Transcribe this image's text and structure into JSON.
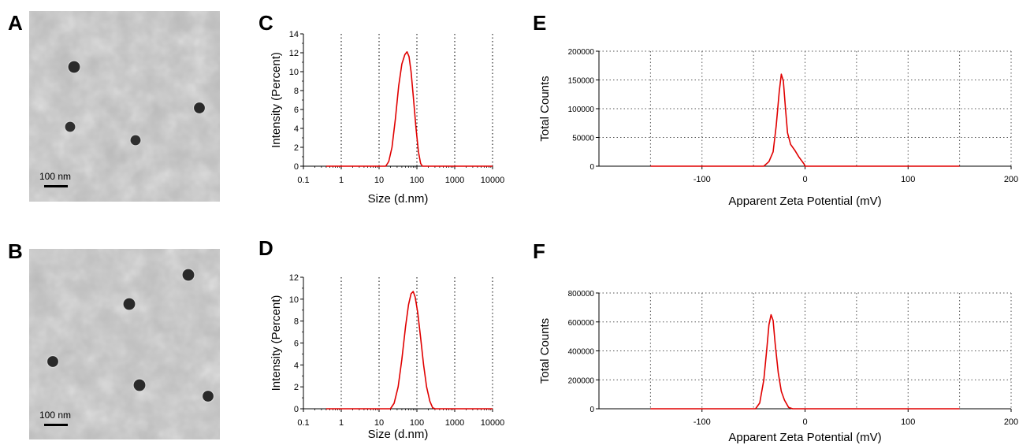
{
  "panels": {
    "A": "A",
    "B": "B",
    "C": "C",
    "D": "D",
    "E": "E",
    "F": "F"
  },
  "tem_images": [
    {
      "panel": "A",
      "scale_bar_label": "100 nm",
      "particles": 4
    },
    {
      "panel": "B",
      "scale_bar_label": "100 nm",
      "particles": 5
    }
  ],
  "colors": {
    "curve": "#e00000",
    "axis": "#000000",
    "grid": "#555555"
  },
  "chart_data": [
    {
      "panel": "C",
      "type": "line",
      "xscale": "log",
      "xlabel": "Size (d.nm)",
      "ylabel": "Intensity (Percent)",
      "xlim": [
        0.1,
        10000
      ],
      "ylim": [
        0,
        14
      ],
      "xticks": [
        "0.1",
        "1",
        "10",
        "100",
        "1000",
        "10000"
      ],
      "yticks": [
        "0",
        "2",
        "4",
        "6",
        "8",
        "10",
        "12",
        "14"
      ],
      "grid": "vertical dotted",
      "series": [
        {
          "x": [
            0.4,
            15,
            18,
            22,
            27,
            33,
            40,
            48,
            55,
            62,
            70,
            80,
            95,
            110,
            125,
            140,
            10000
          ],
          "y": [
            0,
            0,
            0.5,
            2,
            5,
            8.5,
            10.8,
            11.8,
            12.1,
            11.6,
            10,
            7.5,
            4,
            1.5,
            0.3,
            0,
            0
          ]
        }
      ]
    },
    {
      "panel": "D",
      "type": "line",
      "xscale": "log",
      "xlabel": "Size (d.nm)",
      "ylabel": "Intensity (Percent)",
      "xlim": [
        0.1,
        10000
      ],
      "ylim": [
        0,
        12
      ],
      "xticks": [
        "0.1",
        "1",
        "10",
        "100",
        "1000",
        "10000"
      ],
      "yticks": [
        "0",
        "2",
        "4",
        "6",
        "8",
        "10",
        "12"
      ],
      "grid": "vertical dotted",
      "series": [
        {
          "x": [
            0.4,
            20,
            25,
            32,
            40,
            50,
            60,
            70,
            80,
            90,
            105,
            125,
            150,
            180,
            220,
            260,
            300,
            10000
          ],
          "y": [
            0,
            0,
            0.5,
            2,
            4.5,
            7.5,
            9.5,
            10.5,
            10.7,
            10.2,
            8.8,
            6.5,
            4,
            2,
            0.7,
            0.1,
            0,
            0
          ]
        }
      ]
    },
    {
      "panel": "E",
      "type": "line",
      "xlabel": "Apparent Zeta Potential (mV)",
      "ylabel": "Total Counts",
      "xlim": [
        -200,
        200
      ],
      "ylim": [
        0,
        200000
      ],
      "xticks": [
        "-100",
        "0",
        "100",
        "200"
      ],
      "yticks": [
        "0",
        "50000",
        "100000",
        "150000",
        "200000"
      ],
      "grid": "dotted",
      "series": [
        {
          "x": [
            -150,
            -40,
            -35,
            -31,
            -28,
            -25,
            -23,
            -21,
            -19,
            -17,
            -14,
            -10,
            -6,
            -1,
            0,
            150
          ],
          "y": [
            0,
            0,
            8000,
            25000,
            70000,
            130000,
            160000,
            148000,
            100000,
            58000,
            38000,
            28000,
            16000,
            4000,
            0,
            0
          ]
        }
      ]
    },
    {
      "panel": "F",
      "type": "line",
      "xlabel": "Apparent Zeta Potential (mV)",
      "ylabel": "Total Counts",
      "xlim": [
        -200,
        200
      ],
      "ylim": [
        0,
        800000
      ],
      "xticks": [
        "-100",
        "0",
        "100",
        "200"
      ],
      "yticks": [
        "0",
        "200000",
        "400000",
        "600000",
        "800000"
      ],
      "grid": "dotted",
      "series": [
        {
          "x": [
            -150,
            -48,
            -44,
            -40,
            -37,
            -35,
            -33,
            -31,
            -29,
            -26,
            -23,
            -20,
            -16,
            -12,
            150
          ],
          "y": [
            0,
            0,
            40000,
            200000,
            420000,
            580000,
            650000,
            610000,
            450000,
            250000,
            120000,
            60000,
            10000,
            0,
            0
          ]
        }
      ]
    }
  ]
}
